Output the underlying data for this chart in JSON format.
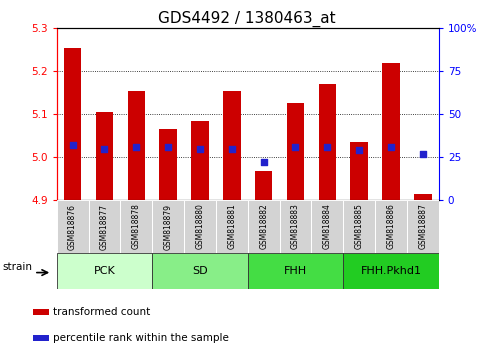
{
  "title": "GDS4492 / 1380463_at",
  "samples": [
    "GSM818876",
    "GSM818877",
    "GSM818878",
    "GSM818879",
    "GSM818880",
    "GSM818881",
    "GSM818882",
    "GSM818883",
    "GSM818884",
    "GSM818885",
    "GSM818886",
    "GSM818887"
  ],
  "transformed_count": [
    5.255,
    5.105,
    5.155,
    5.065,
    5.085,
    5.155,
    4.968,
    5.125,
    5.17,
    5.035,
    5.22,
    4.915
  ],
  "percentile_rank": [
    32,
    30,
    31,
    31,
    30,
    30,
    22,
    31,
    31,
    29,
    31,
    27
  ],
  "ylim_left": [
    4.9,
    5.3
  ],
  "ylim_right": [
    0,
    100
  ],
  "yticks_left": [
    4.9,
    5.0,
    5.1,
    5.2,
    5.3
  ],
  "yticks_right": [
    0,
    25,
    50,
    75,
    100
  ],
  "bar_color": "#cc0000",
  "dot_color": "#2222cc",
  "bar_bottom": 4.9,
  "groups": [
    {
      "label": "PCK",
      "start": 0,
      "end": 3,
      "color": "#ccffcc"
    },
    {
      "label": "SD",
      "start": 3,
      "end": 6,
      "color": "#88ee88"
    },
    {
      "label": "FHH",
      "start": 6,
      "end": 9,
      "color": "#44dd44"
    },
    {
      "label": "FHH.Pkhd1",
      "start": 9,
      "end": 12,
      "color": "#22cc22"
    }
  ],
  "strain_label": "strain",
  "legend_items": [
    {
      "color": "#cc0000",
      "label": "transformed count"
    },
    {
      "color": "#2222cc",
      "label": "percentile rank within the sample"
    }
  ],
  "title_fontsize": 11,
  "tick_fontsize": 7.5,
  "sample_fontsize": 5.5,
  "group_fontsize": 8,
  "legend_fontsize": 7.5
}
